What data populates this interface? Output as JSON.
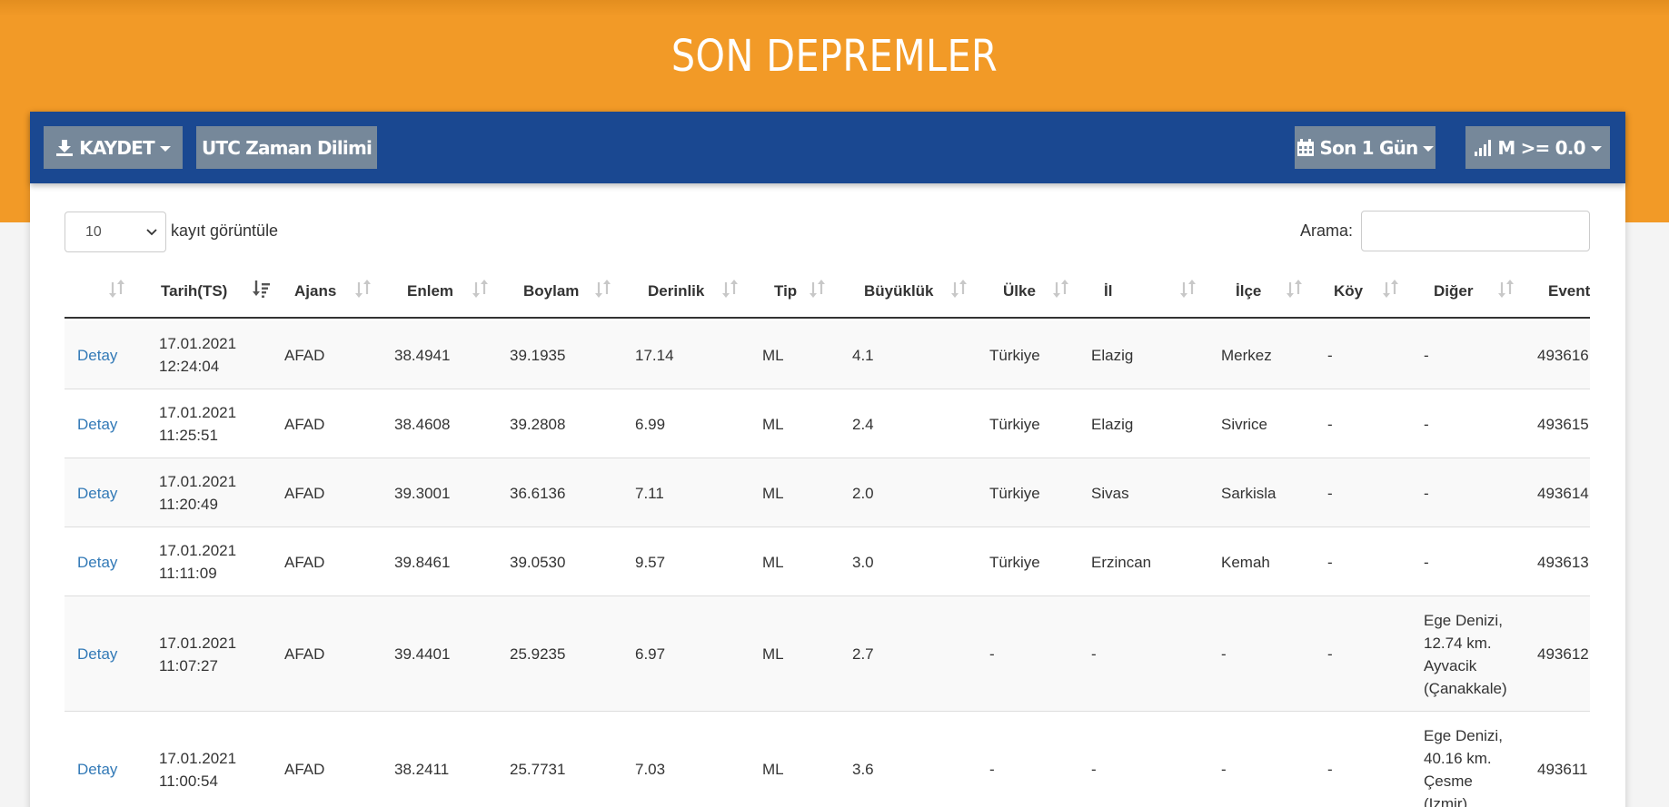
{
  "header": {
    "title": "SON DEPREMLER"
  },
  "toolbar": {
    "save_label": "KAYDET",
    "timezone_label": "UTC Zaman Dilimi",
    "period_label": "Son 1 Gün",
    "magnitude_label": "M >= 0.0"
  },
  "controls": {
    "page_length": "10",
    "page_length_label": "kayıt görüntüle",
    "search_label": "Arama:",
    "search_value": ""
  },
  "table": {
    "columns": [
      "",
      "Tarih(TS)",
      "Ajans",
      "Enlem",
      "Boylam",
      "Derinlik",
      "Tip",
      "Büyüklük",
      "Ülke",
      "İl",
      "İlçe",
      "Köy",
      "Diğer",
      "EventID"
    ],
    "rows": [
      {
        "link": "Detay",
        "date": "17.01.2021",
        "time": "12:24:04",
        "agency": "AFAD",
        "lat": "38.4941",
        "lon": "39.1935",
        "depth": "17.14",
        "type": "ML",
        "mag": "4.1",
        "country": "Türkiye",
        "province": "Elazig",
        "district": "Merkez",
        "village": "-",
        "other": [
          "-"
        ],
        "event": "493616"
      },
      {
        "link": "Detay",
        "date": "17.01.2021",
        "time": "11:25:51",
        "agency": "AFAD",
        "lat": "38.4608",
        "lon": "39.2808",
        "depth": "6.99",
        "type": "ML",
        "mag": "2.4",
        "country": "Türkiye",
        "province": "Elazig",
        "district": "Sivrice",
        "village": "-",
        "other": [
          "-"
        ],
        "event": "493615"
      },
      {
        "link": "Detay",
        "date": "17.01.2021",
        "time": "11:20:49",
        "agency": "AFAD",
        "lat": "39.3001",
        "lon": "36.6136",
        "depth": "7.11",
        "type": "ML",
        "mag": "2.0",
        "country": "Türkiye",
        "province": "Sivas",
        "district": "Sarkisla",
        "village": "-",
        "other": [
          "-"
        ],
        "event": "493614"
      },
      {
        "link": "Detay",
        "date": "17.01.2021",
        "time": "11:11:09",
        "agency": "AFAD",
        "lat": "39.8461",
        "lon": "39.0530",
        "depth": "9.57",
        "type": "ML",
        "mag": "3.0",
        "country": "Türkiye",
        "province": "Erzincan",
        "district": "Kemah",
        "village": "-",
        "other": [
          "-"
        ],
        "event": "493613"
      },
      {
        "link": "Detay",
        "date": "17.01.2021",
        "time": "11:07:27",
        "agency": "AFAD",
        "lat": "39.4401",
        "lon": "25.9235",
        "depth": "6.97",
        "type": "ML",
        "mag": "2.7",
        "country": "-",
        "province": "-",
        "district": "-",
        "village": "-",
        "other": [
          "Ege Denizi,",
          "12.74 km.",
          "Ayvacik",
          "(Çanakkale)"
        ],
        "event": "493612"
      },
      {
        "link": "Detay",
        "date": "17.01.2021",
        "time": "11:00:54",
        "agency": "AFAD",
        "lat": "38.2411",
        "lon": "25.7731",
        "depth": "7.03",
        "type": "ML",
        "mag": "3.6",
        "country": "-",
        "province": "-",
        "district": "-",
        "village": "-",
        "other": [
          "Ege Denizi,",
          "40.16 km.",
          "Çesme",
          "(Izmir)"
        ],
        "event": "493611"
      }
    ]
  },
  "colors": {
    "hero": "#f29a27",
    "toolbar": "#1a4891",
    "button": "#76889a",
    "link": "#337ab7"
  },
  "icons": {
    "save": "download-icon",
    "period": "calendar-icon",
    "magnitude": "bar-chart-icon",
    "sort": "sort-icon",
    "sort_active": "sort-desc-icon"
  }
}
